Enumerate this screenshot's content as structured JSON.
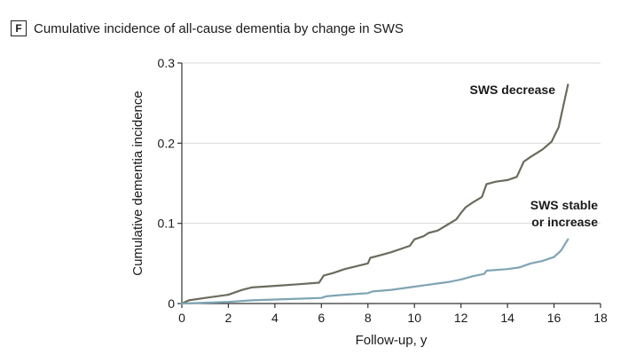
{
  "panel": {
    "letter": "F",
    "title": "Cumulative incidence of all-cause dementia by change in SWS"
  },
  "colors": {
    "decrease": "#6b6b5e",
    "stable": "#7fa4b4",
    "grid": "#d9d9d9",
    "axis": "#333333"
  },
  "chart_data": {
    "type": "line",
    "title": "Cumulative incidence of all-cause dementia by change in SWS",
    "xlabel": "Follow-up, y",
    "ylabel": "Cumulative dementia incidence",
    "xlim": [
      0,
      18
    ],
    "ylim": [
      0,
      0.3
    ],
    "xticks": [
      0,
      2,
      4,
      6,
      8,
      10,
      12,
      14,
      16,
      18
    ],
    "yticks": [
      0,
      0.1,
      0.2,
      0.3
    ],
    "ytick_labels": [
      "0",
      "0.1",
      "0.2",
      "0.3"
    ],
    "grid": "horizontal",
    "series": [
      {
        "name": "SWS decrease",
        "label_lines": [
          "SWS decrease"
        ],
        "color": "#6b6b5e",
        "x": [
          0,
          0.3,
          1.0,
          2.0,
          2.6,
          3.0,
          4.0,
          5.0,
          5.9,
          6.1,
          6.5,
          7.0,
          8.0,
          8.1,
          8.5,
          9.0,
          9.8,
          10.0,
          10.4,
          10.6,
          11.0,
          11.4,
          11.8,
          12.0,
          12.2,
          12.5,
          12.9,
          13.1,
          13.5,
          14.0,
          14.4,
          14.7,
          15.0,
          15.5,
          15.9,
          16.2,
          16.6
        ],
        "y": [
          0,
          0.004,
          0.007,
          0.011,
          0.017,
          0.02,
          0.022,
          0.024,
          0.026,
          0.035,
          0.038,
          0.043,
          0.05,
          0.057,
          0.06,
          0.064,
          0.072,
          0.08,
          0.084,
          0.088,
          0.091,
          0.098,
          0.105,
          0.113,
          0.12,
          0.126,
          0.133,
          0.149,
          0.152,
          0.154,
          0.158,
          0.177,
          0.183,
          0.192,
          0.202,
          0.22,
          0.273
        ]
      },
      {
        "name": "SWS stable or increase",
        "label_lines": [
          "SWS stable",
          "or increase"
        ],
        "color": "#7fa4b4",
        "x": [
          0,
          1.0,
          2.0,
          3.0,
          4.0,
          5.0,
          6.0,
          6.2,
          7.0,
          8.0,
          8.2,
          9.0,
          10.0,
          10.5,
          11.0,
          11.5,
          12.0,
          12.5,
          13.0,
          13.1,
          14.0,
          14.5,
          15.0,
          15.5,
          16.0,
          16.3,
          16.6
        ],
        "y": [
          0,
          0.001,
          0.002,
          0.004,
          0.005,
          0.006,
          0.007,
          0.009,
          0.011,
          0.013,
          0.015,
          0.017,
          0.021,
          0.023,
          0.025,
          0.027,
          0.03,
          0.034,
          0.037,
          0.041,
          0.043,
          0.045,
          0.05,
          0.053,
          0.058,
          0.066,
          0.08
        ]
      }
    ]
  }
}
